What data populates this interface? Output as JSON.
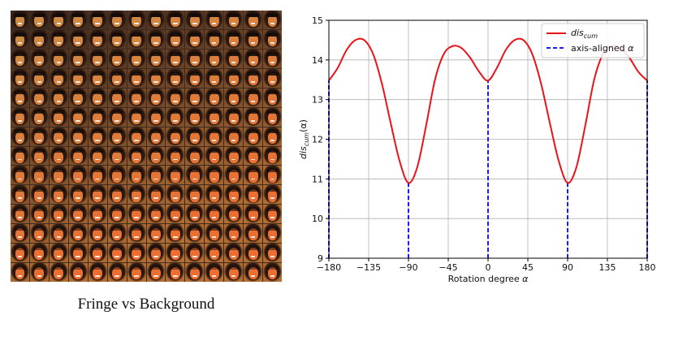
{
  "caption": "Fringe vs Background",
  "face_grid": {
    "rows": 14,
    "cols": 14,
    "icon": "face-thumbnail-icon"
  },
  "chart_data": {
    "type": "line",
    "xlabel_prefix": "Rotation degree ",
    "xlabel_var": "α",
    "ylabel_main": "dis",
    "ylabel_sub": "cum",
    "ylabel_suffix": "(α)",
    "xlim": [
      -180,
      180
    ],
    "ylim": [
      9,
      15
    ],
    "xticks": [
      -180,
      -135,
      -90,
      -45,
      0,
      45,
      90,
      135,
      180
    ],
    "yticks": [
      9,
      10,
      11,
      12,
      13,
      14,
      15
    ],
    "xtick_labels": [
      "−180",
      "−135",
      "−90",
      "−45",
      "0",
      "45",
      "90",
      "135",
      "180"
    ],
    "ytick_labels": [
      "9",
      "10",
      "11",
      "12",
      "13",
      "14",
      "15"
    ],
    "grid": true,
    "legend_position": "top-right",
    "series": [
      {
        "name_main": "dis",
        "name_sub": "cum",
        "style": "solid",
        "color": "#e8141a",
        "x": [
          -180,
          -170,
          -160,
          -150,
          -140,
          -130,
          -120,
          -110,
          -100,
          -90,
          -80,
          -70,
          -60,
          -50,
          -40,
          -30,
          -20,
          -10,
          0,
          10,
          20,
          30,
          40,
          50,
          60,
          70,
          80,
          90,
          100,
          110,
          120,
          130,
          140,
          150,
          160,
          170,
          180
        ],
        "y": [
          13.48,
          13.8,
          14.25,
          14.5,
          14.5,
          14.15,
          13.4,
          12.4,
          11.45,
          10.9,
          11.3,
          12.35,
          13.5,
          14.15,
          14.35,
          14.3,
          14.05,
          13.7,
          13.48,
          13.8,
          14.25,
          14.5,
          14.5,
          14.15,
          13.4,
          12.4,
          11.45,
          10.9,
          11.3,
          12.35,
          13.5,
          14.15,
          14.35,
          14.3,
          14.05,
          13.7,
          13.48
        ]
      },
      {
        "name_prefix": "axis-aligned ",
        "name_var": "α",
        "style": "dashed",
        "color": "#1c1cf0",
        "x": [
          -180,
          -90,
          0,
          90,
          180
        ],
        "y": [
          13.48,
          10.9,
          13.48,
          10.9,
          13.48
        ]
      }
    ]
  },
  "colors": {
    "grid": "#b0b0b0",
    "axis": "#000000"
  }
}
